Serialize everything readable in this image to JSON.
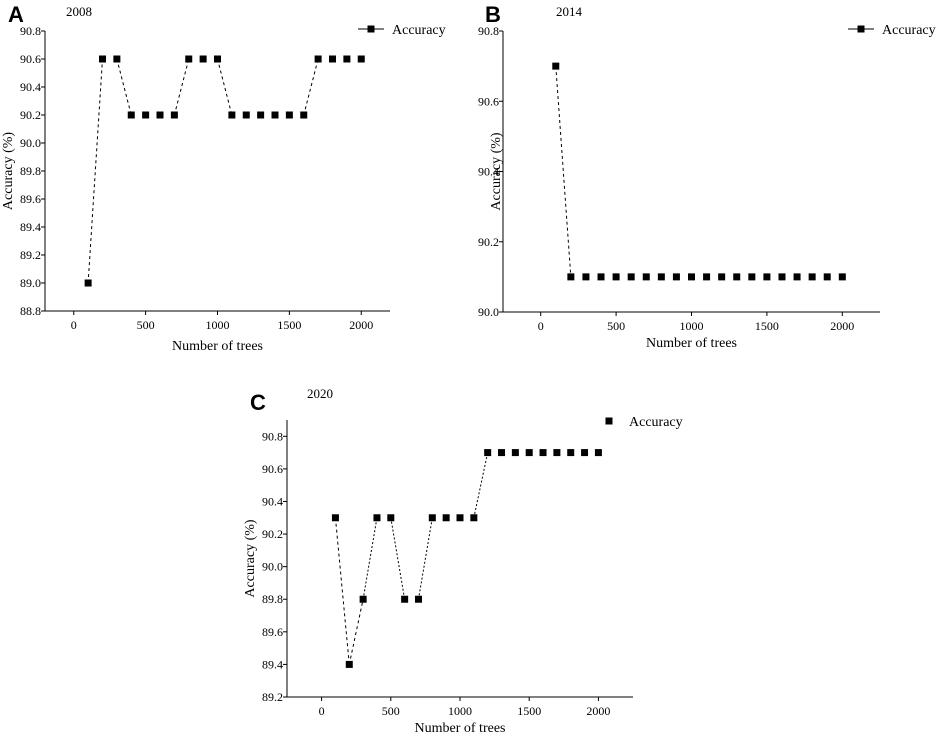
{
  "chart_data": [
    {
      "panel": "A",
      "title": "2008",
      "type": "line",
      "xlabel": "Number of trees",
      "ylabel": "Accuracy (%)",
      "xlim": [
        -200,
        2200
      ],
      "ylim": [
        88.8,
        90.8
      ],
      "xticks": [
        0,
        500,
        1000,
        1500,
        2000
      ],
      "yticks": [
        88.8,
        89.0,
        89.2,
        89.4,
        89.6,
        89.8,
        90.0,
        90.2,
        90.4,
        90.6,
        90.8
      ],
      "xtick_labels": [
        "0",
        "500",
        "1000",
        "1500",
        "2000"
      ],
      "ytick_labels": [
        "88.8",
        "89.0",
        "89.2",
        "89.4",
        "89.6",
        "89.8",
        "90.0",
        "90.2",
        "90.4",
        "90.6",
        "90.8"
      ],
      "legend": "Accuracy",
      "legend_position": "top-right",
      "series": [
        {
          "name": "Accuracy",
          "x": [
            100,
            200,
            300,
            400,
            500,
            600,
            700,
            800,
            900,
            1000,
            1100,
            1200,
            1300,
            1400,
            1500,
            1600,
            1700,
            1800,
            1900,
            2000
          ],
          "y": [
            89.0,
            90.6,
            90.6,
            90.2,
            90.2,
            90.2,
            90.2,
            90.6,
            90.6,
            90.6,
            90.2,
            90.2,
            90.2,
            90.2,
            90.2,
            90.2,
            90.6,
            90.6,
            90.6,
            90.6
          ]
        }
      ]
    },
    {
      "panel": "B",
      "title": "2014",
      "type": "line",
      "xlabel": "Number of trees",
      "ylabel": "Accuracy (%)",
      "xlim": [
        -250,
        2250
      ],
      "ylim": [
        90.0,
        90.8
      ],
      "xticks": [
        0,
        500,
        1000,
        1500,
        2000
      ],
      "yticks": [
        90.0,
        90.2,
        90.4,
        90.6,
        90.8
      ],
      "xtick_labels": [
        "0",
        "500",
        "1000",
        "1500",
        "2000"
      ],
      "ytick_labels": [
        "90.0",
        "90.2",
        "90.4",
        "90.6",
        "90.8"
      ],
      "legend": "Accuracy",
      "legend_position": "top-right",
      "series": [
        {
          "name": "Accuracy",
          "x": [
            100,
            200,
            300,
            400,
            500,
            600,
            700,
            800,
            900,
            1000,
            1100,
            1200,
            1300,
            1400,
            1500,
            1600,
            1700,
            1800,
            1900,
            2000
          ],
          "y": [
            90.7,
            90.1,
            90.1,
            90.1,
            90.1,
            90.1,
            90.1,
            90.1,
            90.1,
            90.1,
            90.1,
            90.1,
            90.1,
            90.1,
            90.1,
            90.1,
            90.1,
            90.1,
            90.1,
            90.1
          ]
        }
      ]
    },
    {
      "panel": "C",
      "title": "2020",
      "type": "line",
      "xlabel": "Number of trees",
      "ylabel": "Accuracy (%)",
      "xlim": [
        -250,
        2250
      ],
      "ylim": [
        89.2,
        90.9
      ],
      "xticks": [
        0,
        500,
        1000,
        1500,
        2000
      ],
      "yticks": [
        89.2,
        89.4,
        89.6,
        89.8,
        90.0,
        90.2,
        90.4,
        90.6,
        90.8
      ],
      "xtick_labels": [
        "0",
        "500",
        "1000",
        "1500",
        "2000"
      ],
      "ytick_labels": [
        "89.2",
        "89.4",
        "89.6",
        "89.8",
        "90.0",
        "90.2",
        "90.4",
        "90.6",
        "90.8"
      ],
      "legend": "Accuracy",
      "legend_position": "top-right",
      "series": [
        {
          "name": "Accuracy",
          "x": [
            100,
            200,
            300,
            400,
            500,
            600,
            700,
            800,
            900,
            1000,
            1100,
            1200,
            1300,
            1400,
            1500,
            1600,
            1700,
            1800,
            1900,
            2000
          ],
          "y": [
            90.3,
            89.4,
            89.8,
            90.3,
            90.3,
            89.8,
            89.8,
            90.3,
            90.3,
            90.3,
            90.3,
            90.7,
            90.7,
            90.7,
            90.7,
            90.7,
            90.7,
            90.7,
            90.7,
            90.7
          ]
        }
      ]
    }
  ]
}
